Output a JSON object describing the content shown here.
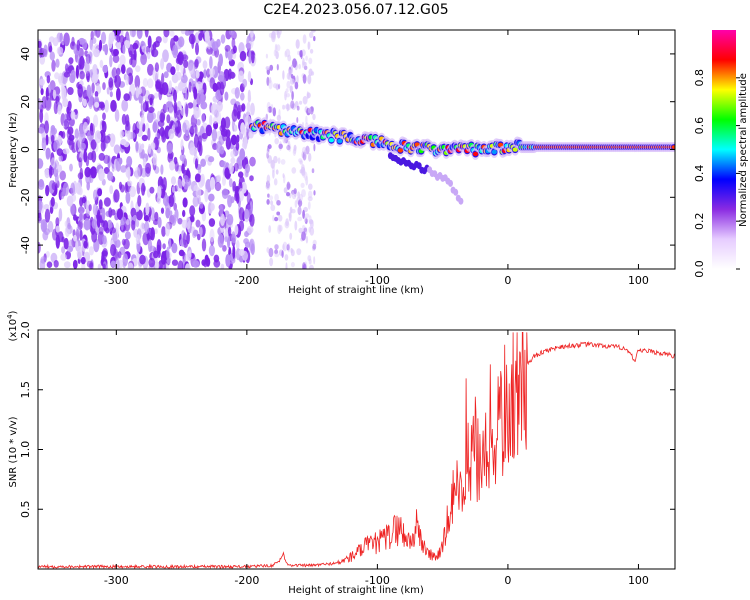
{
  "title": "C2E4.2023.056.07.12.G05",
  "chart_data": [
    {
      "type": "heatmap",
      "name": "spectrogram",
      "xlabel": "Height of straight line (km)",
      "ylabel": "Frequency (Hz)",
      "xlim": [
        -360,
        128
      ],
      "ylim": [
        -50,
        50
      ],
      "xticks": [
        -300,
        -200,
        -100,
        0,
        100
      ],
      "yticks": [
        -40,
        -20,
        0,
        20,
        40
      ],
      "colorbar": {
        "label": "Normalized spectral amplitude",
        "range": [
          0,
          1
        ],
        "ticks": [
          "0.0",
          "0.2",
          "0.4",
          "0.6",
          "0.8"
        ],
        "colors": [
          "#ffffff",
          "#e6ccff",
          "#8a2be2",
          "#0000ff",
          "#00ffff",
          "#00ff00",
          "#ffff00",
          "#ff0000",
          "#ff00aa"
        ]
      },
      "noise_region_km": [
        -360,
        -195
      ],
      "gap_km": [
        -195,
        -185
      ],
      "sparse_noise_km": [
        -185,
        -148
      ],
      "signal_track": {
        "x": [
          -200,
          -190,
          -180,
          -160,
          -140,
          -120,
          -100,
          -80,
          -60,
          -40,
          -20,
          0,
          20,
          40,
          60,
          80,
          100,
          128
        ],
        "freq": [
          10,
          10,
          9,
          7,
          6,
          5,
          3,
          1,
          0,
          0,
          0,
          1,
          1,
          1,
          1,
          1,
          1,
          1
        ]
      },
      "tail_branch": {
        "x": [
          -90,
          -80,
          -70,
          -60,
          -50,
          -45,
          -40,
          -35
        ],
        "freq": [
          -3,
          -5,
          -7,
          -9,
          -12,
          -14,
          -18,
          -23
        ]
      }
    },
    {
      "type": "line",
      "name": "snr",
      "title": "",
      "xlabel": "Height of straight line (km)",
      "ylabel": "SNR (10 * v/v)",
      "multiplier": "(x10",
      "multiplier_exp": "4",
      "multiplier_close": ")",
      "xlim": [
        -360,
        128
      ],
      "ylim": [
        0,
        2.0
      ],
      "xticks": [
        -300,
        -200,
        -100,
        0,
        100
      ],
      "yticks": [
        "0.5",
        "1.0",
        "1.5",
        "2.0"
      ],
      "color": "#ee2222",
      "x": [
        -360,
        -300,
        -200,
        -180,
        -175,
        -172,
        -170,
        -165,
        -150,
        -130,
        -120,
        -110,
        -100,
        -90,
        -85,
        -80,
        -75,
        -70,
        -65,
        -60,
        -55,
        -50,
        -45,
        -40,
        -35,
        -30,
        -25,
        -20,
        -15,
        -10,
        -5,
        0,
        5,
        10,
        20,
        30,
        40,
        50,
        60,
        70,
        80,
        90,
        95,
        97,
        100,
        110,
        120,
        128
      ],
      "y": [
        0.02,
        0.02,
        0.02,
        0.03,
        0.07,
        0.13,
        0.05,
        0.03,
        0.03,
        0.05,
        0.1,
        0.18,
        0.22,
        0.28,
        0.35,
        0.3,
        0.22,
        0.35,
        0.2,
        0.12,
        0.1,
        0.18,
        0.45,
        0.7,
        0.55,
        0.9,
        1.0,
        0.75,
        1.05,
        1.1,
        1.25,
        1.4,
        1.55,
        1.65,
        1.78,
        1.83,
        1.86,
        1.87,
        1.88,
        1.87,
        1.86,
        1.85,
        1.78,
        1.72,
        1.83,
        1.82,
        1.8,
        1.78
      ]
    }
  ]
}
